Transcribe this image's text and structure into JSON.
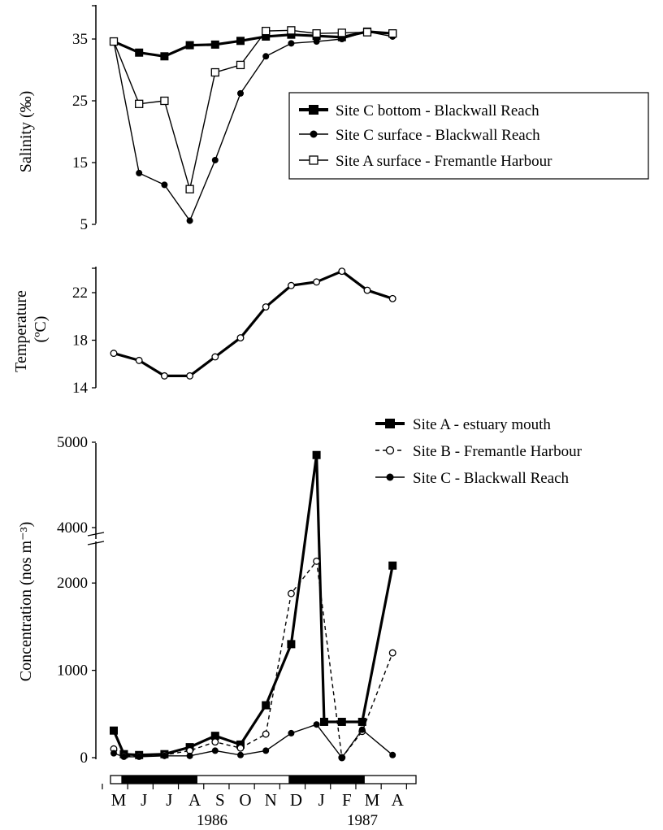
{
  "chart_data": [
    {
      "type": "line",
      "ylabel": "Salinity (‰)",
      "ylim": [
        5,
        35
      ],
      "yticks": [
        "35",
        "25",
        "15",
        "5"
      ],
      "x": [
        "M",
        "J",
        "J",
        "A",
        "S",
        "O",
        "N",
        "D",
        "J",
        "F",
        "M",
        "A"
      ],
      "x_positions": [
        0,
        1,
        2,
        3,
        4,
        5,
        6,
        7,
        8,
        9,
        10,
        11
      ],
      "legend_position": "right",
      "series": [
        {
          "name": "Site C bottom - Blackwall Reach",
          "marker": "filled-square",
          "line": "thick",
          "points": [
            [
              0,
              34.6
            ],
            [
              1,
              32.8
            ],
            [
              2,
              32.2
            ],
            [
              3,
              34.0
            ],
            [
              4,
              34.1
            ],
            [
              5,
              34.7
            ],
            [
              6,
              35.4
            ],
            [
              7,
              35.7
            ],
            [
              8,
              35.5
            ],
            [
              9,
              35.3
            ],
            [
              10,
              36.2
            ],
            [
              11,
              35.9
            ]
          ]
        },
        {
          "name": "Site C surface - Blackwall Reach",
          "marker": "filled-circle",
          "line": "thin",
          "points": [
            [
              0,
              34.6
            ],
            [
              1,
              13.3
            ],
            [
              2,
              11.4
            ],
            [
              3,
              5.6
            ],
            [
              4,
              15.4
            ],
            [
              5,
              26.2
            ],
            [
              6,
              32.2
            ],
            [
              7,
              34.3
            ],
            [
              8,
              34.6
            ],
            [
              9,
              35.0
            ],
            [
              10,
              36.2
            ],
            [
              11,
              35.4
            ]
          ]
        },
        {
          "name": "Site A surface - Fremantle Harbour",
          "marker": "open-square",
          "line": "thin",
          "points": [
            [
              0,
              34.6
            ],
            [
              1,
              24.5
            ],
            [
              2,
              25.0
            ],
            [
              3,
              10.7
            ],
            [
              4,
              29.6
            ],
            [
              5,
              30.8
            ],
            [
              6,
              36.3
            ],
            [
              7,
              36.4
            ],
            [
              8,
              35.9
            ],
            [
              9,
              36.0
            ],
            [
              10,
              36.1
            ],
            [
              11,
              35.9
            ]
          ]
        }
      ]
    },
    {
      "type": "line",
      "ylabel": "Temperature (ºC)",
      "ylim": [
        14,
        24
      ],
      "yticks": [
        "22",
        "18",
        "14"
      ],
      "series": [
        {
          "name": "",
          "marker": "open-circle",
          "line": "thick",
          "points": [
            [
              0,
              16.9
            ],
            [
              1,
              16.3
            ],
            [
              2,
              15.0
            ],
            [
              3,
              15.0
            ],
            [
              4,
              16.6
            ],
            [
              5,
              18.2
            ],
            [
              6,
              20.8
            ],
            [
              7,
              22.6
            ],
            [
              8,
              22.9
            ],
            [
              9,
              23.8
            ],
            [
              10,
              22.2
            ],
            [
              11,
              21.5
            ]
          ]
        }
      ]
    },
    {
      "type": "line",
      "ylabel": "Concentration (nos m⁻³)",
      "yticks": [
        "5000",
        "4000",
        "2000",
        "1000",
        "0"
      ],
      "y_axis_break": [
        2300,
        4000
      ],
      "legend_position": "top-right",
      "series": [
        {
          "name": "Site A - estuary mouth",
          "marker": "filled-square",
          "line": "thick",
          "points": [
            [
              0,
              310
            ],
            [
              0.4,
              40
            ],
            [
              1,
              30
            ],
            [
              2,
              40
            ],
            [
              3,
              120
            ],
            [
              4,
              250
            ],
            [
              5,
              150
            ],
            [
              6,
              600
            ],
            [
              7,
              1300
            ],
            [
              8,
              4850
            ],
            [
              8.3,
              410
            ],
            [
              9,
              410
            ],
            [
              9.8,
              410
            ],
            [
              11,
              2200
            ]
          ]
        },
        {
          "name": "Site B - Fremantle Harbour",
          "marker": "open-circle",
          "line": "dashed",
          "points": [
            [
              0,
              100
            ],
            [
              0.4,
              20
            ],
            [
              1,
              20
            ],
            [
              2,
              30
            ],
            [
              3,
              80
            ],
            [
              4,
              180
            ],
            [
              5,
              110
            ],
            [
              6,
              270
            ],
            [
              7,
              1880
            ],
            [
              8,
              2250
            ],
            [
              9,
              0
            ],
            [
              9.8,
              300
            ],
            [
              11,
              1200
            ]
          ]
        },
        {
          "name": "Site C - Blackwall Reach",
          "marker": "filled-circle",
          "line": "thin",
          "points": [
            [
              0,
              50
            ],
            [
              0.4,
              10
            ],
            [
              1,
              10
            ],
            [
              2,
              20
            ],
            [
              3,
              20
            ],
            [
              4,
              80
            ],
            [
              5,
              30
            ],
            [
              6,
              80
            ],
            [
              7,
              280
            ],
            [
              8,
              380
            ],
            [
              9,
              0
            ],
            [
              9.8,
              320
            ],
            [
              11,
              30
            ]
          ]
        }
      ]
    }
  ],
  "time_axis": {
    "months": [
      "M",
      "J",
      "J",
      "A",
      "S",
      "O",
      "N",
      "D",
      "J",
      "F",
      "M",
      "A"
    ],
    "years": [
      "1986",
      "1987"
    ],
    "dark_bands": [
      [
        0.3,
        3.3
      ],
      [
        6.9,
        9.9
      ]
    ]
  }
}
